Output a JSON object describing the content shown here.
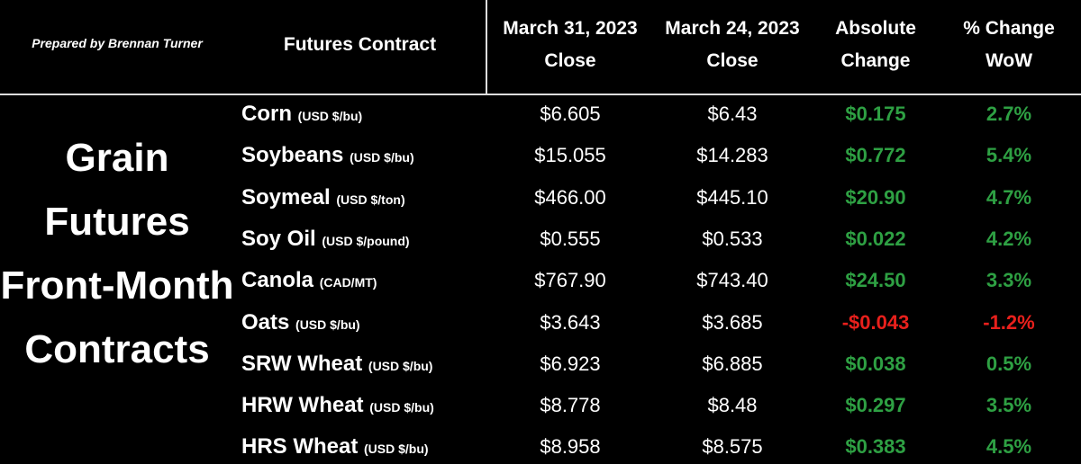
{
  "header": {
    "prepared_by": "Prepared by Brennan Turner",
    "columns": [
      "Futures Contract",
      "March 31, 2023 Close",
      "March 24, 2023 Close",
      "Absolute Change",
      "% Change WoW"
    ]
  },
  "side_label": "Grain Futures Front-Month Contracts",
  "table": {
    "rows": [
      [
        "Corn",
        "(USD $/bu)",
        "$6.605",
        "$6.43",
        "$0.175",
        "2.7%"
      ],
      [
        "Soybeans",
        "(USD $/bu)",
        "$15.055",
        "$14.283",
        "$0.772",
        "5.4%"
      ],
      [
        "Soymeal",
        "(USD $/ton)",
        "$466.00",
        "$445.10",
        "$20.90",
        "4.7%"
      ],
      [
        "Soy Oil",
        "(USD $/pound)",
        "$0.555",
        "$0.533",
        "$0.022",
        "4.2%"
      ],
      [
        "Canola",
        "(CAD/MT)",
        "$767.90",
        "$743.40",
        "$24.50",
        "3.3%"
      ],
      [
        "Oats",
        "(USD $/bu)",
        "$3.643",
        "$3.685",
        "-$0.043",
        "-1.2%"
      ],
      [
        "SRW Wheat",
        "(USD $/bu)",
        "$6.923",
        "$6.885",
        "$0.038",
        "0.5%"
      ],
      [
        "HRW Wheat",
        "(USD $/bu)",
        "$8.778",
        "$8.48",
        "$0.297",
        "3.5%"
      ],
      [
        "HRS Wheat",
        "(USD $/bu)",
        "$8.958",
        "$8.575",
        "$0.383",
        "4.5%"
      ]
    ]
  }
}
